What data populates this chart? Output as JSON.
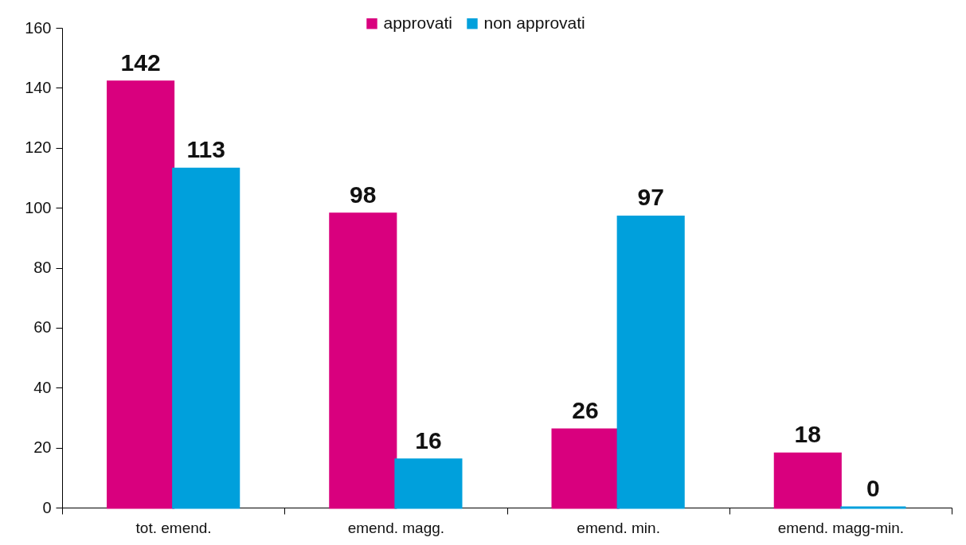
{
  "chart_data": {
    "type": "bar",
    "categories": [
      "tot. emend.",
      "emend. magg.",
      "emend. min.",
      "emend. magg-min."
    ],
    "series": [
      {
        "name": "approvati",
        "color": "#d9007e",
        "values": [
          142,
          98,
          26,
          18
        ]
      },
      {
        "name": "non approvati",
        "color": "#00a0dc",
        "values": [
          113,
          16,
          97,
          0
        ]
      }
    ],
    "ylim": [
      0,
      160
    ],
    "yticks": [
      0,
      20,
      40,
      60,
      80,
      100,
      120,
      140,
      160
    ],
    "data_labels": true,
    "legend": "top"
  }
}
